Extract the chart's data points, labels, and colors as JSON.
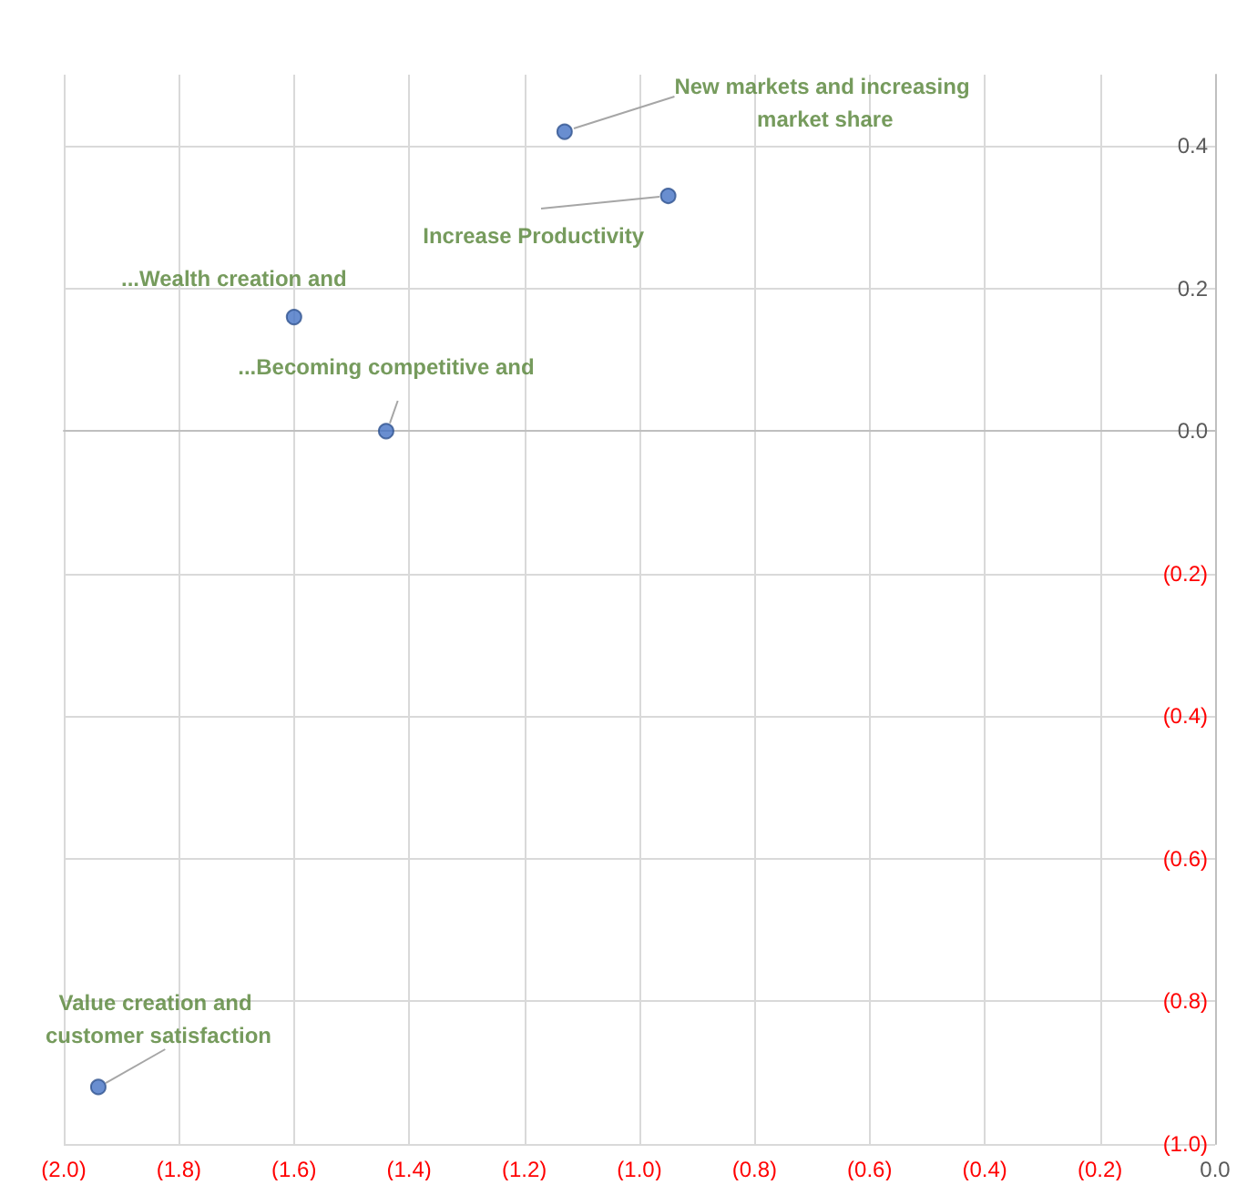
{
  "chart_data": {
    "type": "scatter",
    "x": [
      -1.13,
      -0.95,
      -1.6,
      -1.44,
      -1.94
    ],
    "series": [
      {
        "color": "#4472c4",
        "values": [
          0.42,
          0.33,
          0.16,
          0.0,
          -0.92
        ]
      }
    ],
    "xlim": [
      -2.0,
      0.0
    ],
    "xticks": [
      {
        "value": -2.0,
        "label": "(2.0)"
      },
      {
        "value": -1.8,
        "label": "(1.8)"
      },
      {
        "value": -1.6,
        "label": "(1.6)"
      },
      {
        "value": -1.4,
        "label": "(1.4)"
      },
      {
        "value": -1.2,
        "label": "(1.2)"
      },
      {
        "value": -1.0,
        "label": "(1.0)"
      },
      {
        "value": -0.8,
        "label": "(0.8)"
      },
      {
        "value": -0.6,
        "label": "(0.6)"
      },
      {
        "value": -0.4,
        "label": "(0.4)"
      },
      {
        "value": -0.2,
        "label": "(0.2)"
      },
      {
        "value": 0,
        "label": "0.0"
      }
    ],
    "ylim": [
      -1.0,
      0.5
    ],
    "yticks": [
      {
        "value": -1.0,
        "label": "(1.0)"
      },
      {
        "value": -0.8,
        "label": "(0.8)"
      },
      {
        "value": -0.6,
        "label": "(0.6)"
      },
      {
        "value": -0.4,
        "label": "(0.4)"
      },
      {
        "value": -0.2,
        "label": "(0.2)"
      },
      {
        "value": 0,
        "label": "0.0"
      },
      {
        "value": 0.2,
        "label": "0.2"
      },
      {
        "value": 0.4,
        "label": "0.4"
      }
    ],
    "annotations": [
      {
        "text": "New markets and increasing market share",
        "x": -1.13,
        "y": 0.42
      },
      {
        "text": "Increase Productivity",
        "x": -0.95,
        "y": 0.33
      },
      {
        "text": "...Wealth creation and",
        "x": -1.6,
        "y": 0.16
      },
      {
        "text": "...Becoming competitive and",
        "x": -1.44,
        "y": 0.0
      },
      {
        "text": "Value creation and customer satisfaction",
        "x": -1.94,
        "y": -0.92
      }
    ],
    "grid": true,
    "marker": "circle"
  }
}
